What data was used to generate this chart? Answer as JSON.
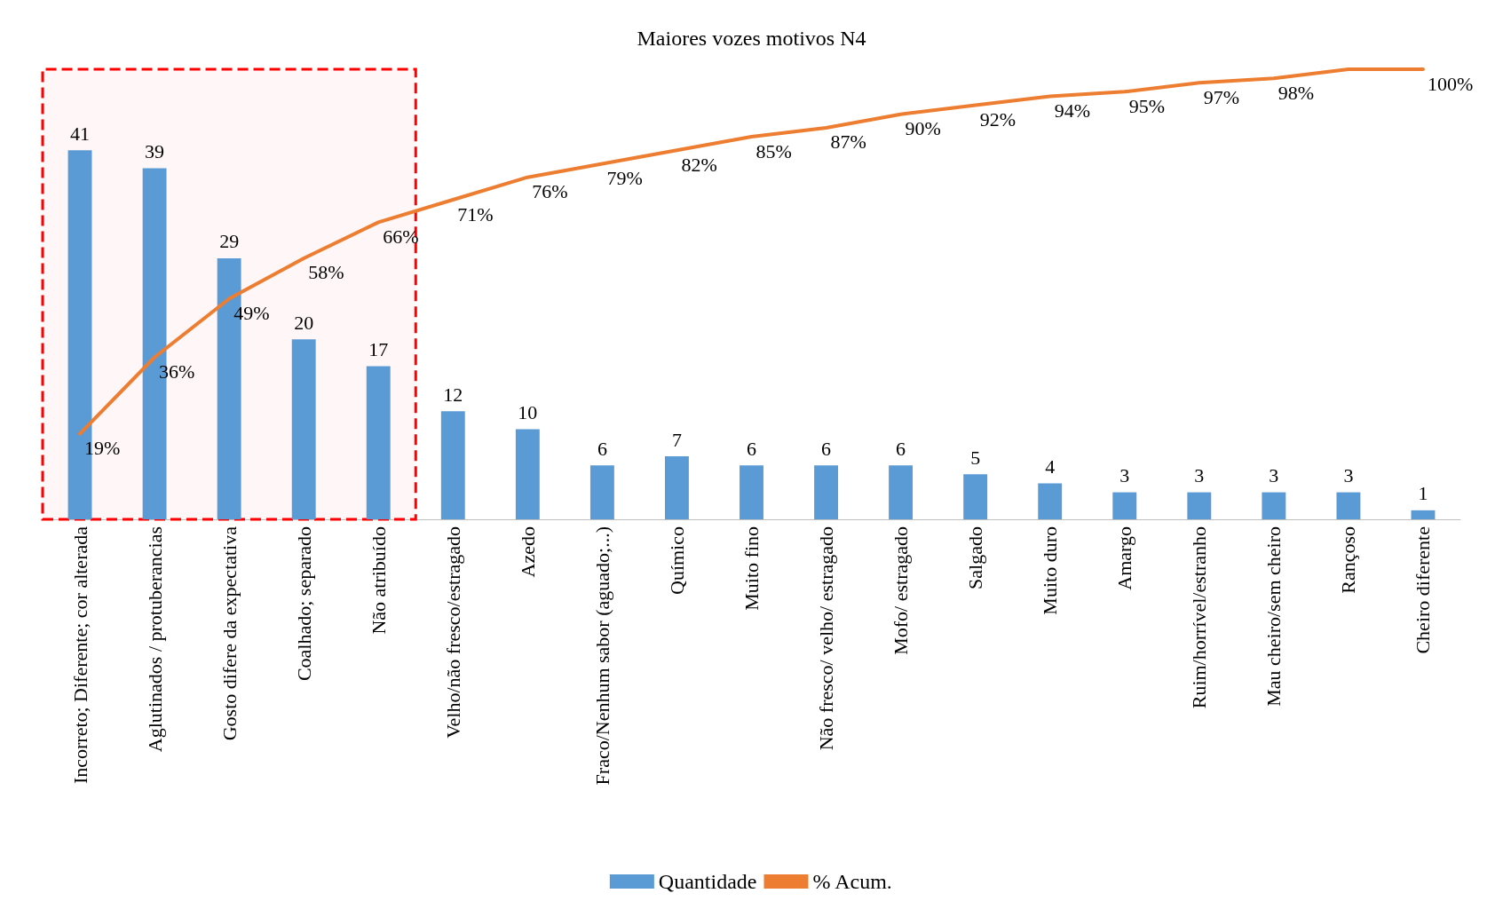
{
  "chart_data": {
    "type": "bar",
    "title": "Maiores vozes motivos N4",
    "categories": [
      "Incorreto; Diferente; cor alterada",
      "Aglutinados / protuberancias",
      "Gosto difere da expectativa",
      "Coalhado; separado",
      "Não atribuído",
      "Velho/não fresco/estragado",
      "Azedo",
      "Fraco/Nenhum sabor (aguado;...)",
      "Químico",
      "Muito fino",
      "Não fresco/ velho/ estragado",
      "Mofo/ estragado",
      "Salgado",
      "Muito duro",
      "Amargo",
      "Ruim/horrível/estranho",
      "Mau cheiro/sem cheiro",
      "Rançoso",
      "Cheiro diferente"
    ],
    "series": [
      {
        "name": "Quantidade",
        "color": "#5b9bd5",
        "values": [
          41,
          39,
          29,
          20,
          17,
          12,
          10,
          6,
          7,
          6,
          6,
          6,
          5,
          4,
          3,
          3,
          3,
          3,
          1
        ],
        "value_labels": [
          "41",
          "39",
          "29",
          "20",
          "17",
          "12",
          "10",
          "6",
          "7",
          "6",
          "6",
          "6",
          "5",
          "4",
          "3",
          "3",
          "3",
          "3",
          "1"
        ]
      },
      {
        "name": "% Acum.",
        "type": "line",
        "axis": "y2",
        "color": "#ed7d31",
        "values": [
          19,
          36,
          49,
          58,
          66,
          71,
          76,
          79,
          82,
          85,
          87,
          90,
          92,
          94,
          95,
          97,
          98,
          100,
          100
        ],
        "value_labels": [
          "19%",
          "36%",
          "49%",
          "58%",
          "66%",
          "71%",
          "76%",
          "79%",
          "82%",
          "85%",
          "87%",
          "90%",
          "92%",
          "94%",
          "95%",
          "97%",
          "98%",
          null,
          "100%"
        ]
      }
    ],
    "bands": [
      {
        "axis": "x",
        "from": "Incorreto; Diferente; cor alterada",
        "to": "Não atribuído",
        "color": "#ff0000"
      }
    ],
    "legend": "bottom",
    "grid": false,
    "line_style": "solid"
  }
}
